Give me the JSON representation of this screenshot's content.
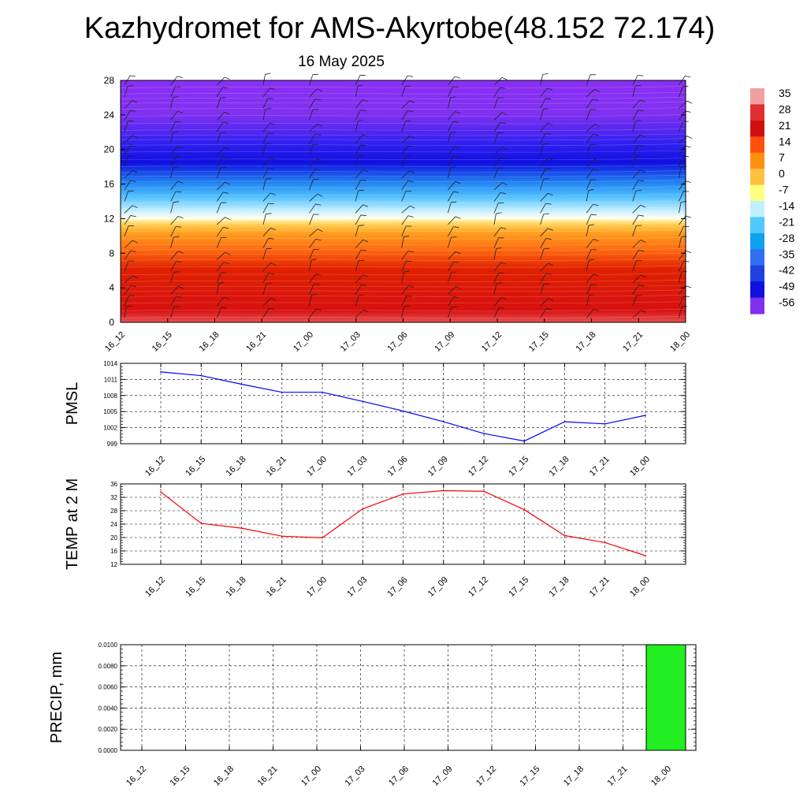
{
  "header": {
    "title": "Kazhydromet for AMS-Akyrtobe(48.152 72.174)",
    "date": "16 May 2025"
  },
  "colorbar": {
    "labels": [
      "35",
      "28",
      "21",
      "14",
      "7",
      "0",
      "-7",
      "-14",
      "-21",
      "-28",
      "-35",
      "-42",
      "-49",
      "-56"
    ],
    "colors": [
      "#f0a0a0",
      "#e03030",
      "#d01010",
      "#ff5010",
      "#ff9010",
      "#ffc040",
      "#ffff80",
      "#c0f0ff",
      "#50c8ff",
      "#10a0f0",
      "#3070f0",
      "#2040e0",
      "#1010e0",
      "#8030f0"
    ]
  },
  "chart_data": [
    {
      "type": "heatmap",
      "name": "cross-section",
      "x_ticks": [
        "16_12",
        "16_15",
        "16_18",
        "16_21",
        "17_00",
        "17_03",
        "17_06",
        "17_09",
        "17_12",
        "17_15",
        "17_18",
        "17_21",
        "18_00"
      ],
      "y_ticks": [
        "0",
        "4",
        "8",
        "12",
        "16",
        "20",
        "24",
        "28"
      ],
      "ylim": [
        0,
        28
      ],
      "color_scale_min": -56,
      "color_scale_max": 35,
      "wind_barbs": true
    },
    {
      "type": "line",
      "ylabel": "PMSL",
      "x": [
        "16_12",
        "16_15",
        "16_18",
        "16_21",
        "17_00",
        "17_03",
        "17_06",
        "17_09",
        "17_12",
        "17_15",
        "17_18",
        "17_21",
        "18_00"
      ],
      "y_ticks": [
        "999",
        "1002",
        "1005",
        "1008",
        "1011",
        "1014"
      ],
      "ylim": [
        999,
        1014
      ],
      "values": [
        1012.4,
        1011.7,
        1010.1,
        1008.6,
        1008.6,
        1006.9,
        1005.1,
        1003.1,
        1000.9,
        999.5,
        1003.1,
        1002.7,
        1004.3
      ],
      "color": "#0000ff",
      "grid": true
    },
    {
      "type": "line",
      "ylabel": "TEMP at 2 M",
      "x": [
        "16_12",
        "16_15",
        "16_18",
        "16_21",
        "17_00",
        "17_03",
        "17_06",
        "17_09",
        "17_12",
        "17_15",
        "17_18",
        "17_21",
        "18_00"
      ],
      "y_ticks": [
        "12",
        "16",
        "20",
        "24",
        "28",
        "32",
        "36"
      ],
      "ylim": [
        12,
        36
      ],
      "values": [
        33.6,
        24.2,
        22.8,
        20.4,
        19.9,
        28.6,
        33.0,
        34.0,
        33.8,
        28.3,
        20.6,
        18.5,
        14.6
      ],
      "color": "#ff0000",
      "grid": true
    },
    {
      "type": "bar",
      "ylabel": "PRECIP, mm",
      "categories": [
        "16_12",
        "16_15",
        "16_18",
        "16_21",
        "17_00",
        "17_03",
        "17_06",
        "17_09",
        "17_12",
        "17_15",
        "17_18",
        "17_21",
        "18_00"
      ],
      "y_ticks": [
        "0.0000",
        "0.0020",
        "0.0040",
        "0.0060",
        "0.0080",
        "0.0100"
      ],
      "ylim": [
        0,
        0.01
      ],
      "values": [
        0,
        0,
        0,
        0,
        0,
        0,
        0,
        0,
        0,
        0,
        0,
        0,
        0.01
      ],
      "color": "#22ee22",
      "grid": true
    }
  ]
}
